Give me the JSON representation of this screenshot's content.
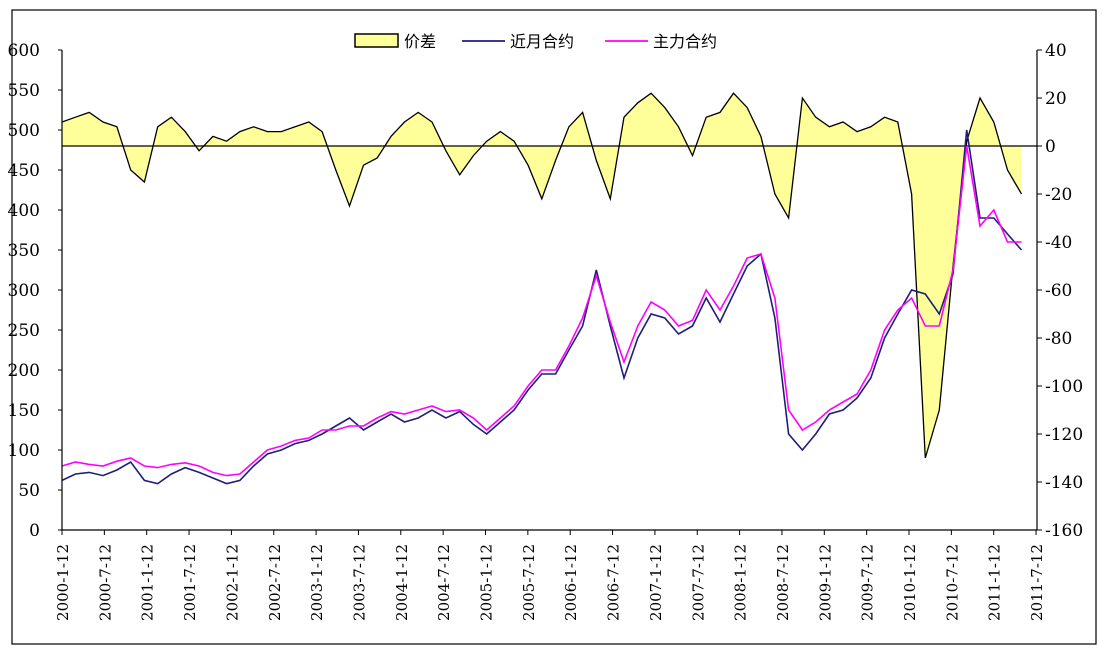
{
  "chart_data": {
    "type": "line",
    "title": "",
    "legend": {
      "placement": "top-center",
      "entries": [
        {
          "key": "spread",
          "label": "价差",
          "swatch": "area"
        },
        {
          "key": "near",
          "label": "近月合约",
          "swatch": "line"
        },
        {
          "key": "main",
          "label": "主力合约",
          "swatch": "line"
        }
      ]
    },
    "colors": {
      "spread_fill": "#ffff99",
      "spread_line": "#000000",
      "near": "#1f1f7a",
      "main": "#ff00ff",
      "axis": "#000000"
    },
    "left_axis": {
      "min": 0,
      "max": 600,
      "ticks": [
        "0",
        "50",
        "100",
        "150",
        "200",
        "250",
        "300",
        "350",
        "400",
        "450",
        "500",
        "550",
        "600"
      ]
    },
    "right_axis": {
      "min": -160,
      "max": 40,
      "ticks": [
        "40",
        "20",
        "0",
        "-20",
        "-40",
        "-60",
        "-80",
        "-100",
        "-120",
        "-140",
        "-160"
      ]
    },
    "x_axis": {
      "tick_labels": [
        "2000-1-12",
        "2000-7-12",
        "2001-1-12",
        "2001-7-12",
        "2002-1-12",
        "2002-7-12",
        "2003-1-12",
        "2003-7-12",
        "2004-1-12",
        "2004-7-12",
        "2005-1-12",
        "2005-7-12",
        "2006-1-12",
        "2006-7-12",
        "2007-1-12",
        "2007-7-12",
        "2008-1-12",
        "2008-7-12",
        "2009-1-12",
        "2009-7-12",
        "2010-1-12",
        "2010-7-12",
        "2011-1-12",
        "2011-7-12"
      ]
    },
    "grid": false,
    "series": [
      {
        "name": "价差",
        "axis": "right",
        "type": "area",
        "x": [
          "2000-01-12",
          "2000-03-12",
          "2000-05-12",
          "2000-07-12",
          "2000-09-12",
          "2000-11-12",
          "2001-01-12",
          "2001-03-12",
          "2001-05-12",
          "2001-07-12",
          "2001-09-12",
          "2001-11-12",
          "2002-01-12",
          "2002-03-12",
          "2002-05-12",
          "2002-07-12",
          "2002-09-12",
          "2002-11-12",
          "2003-01-12",
          "2003-03-12",
          "2003-05-12",
          "2003-07-12",
          "2003-09-12",
          "2003-11-12",
          "2004-01-12",
          "2004-03-12",
          "2004-05-12",
          "2004-07-12",
          "2004-09-12",
          "2004-11-12",
          "2005-01-12",
          "2005-03-12",
          "2005-05-12",
          "2005-07-12",
          "2005-09-12",
          "2005-11-12",
          "2006-01-12",
          "2006-03-12",
          "2006-05-12",
          "2006-07-12",
          "2006-09-12",
          "2006-11-12",
          "2007-01-12",
          "2007-03-12",
          "2007-05-12",
          "2007-07-12",
          "2007-09-12",
          "2007-11-12",
          "2008-01-12",
          "2008-03-12",
          "2008-05-12",
          "2008-07-12",
          "2008-09-12",
          "2008-11-12",
          "2009-01-12",
          "2009-03-12",
          "2009-05-12",
          "2009-07-12",
          "2009-09-12",
          "2009-11-12",
          "2010-01-12",
          "2010-03-12",
          "2010-05-12",
          "2010-07-12",
          "2010-09-12",
          "2010-11-12",
          "2011-01-12",
          "2011-03-12",
          "2011-05-12",
          "2011-07-12",
          "2011-09-12"
        ],
        "values": [
          10,
          12,
          14,
          10,
          8,
          -10,
          -15,
          8,
          12,
          6,
          -2,
          4,
          2,
          6,
          8,
          6,
          6,
          8,
          10,
          6,
          -10,
          -25,
          -8,
          -5,
          4,
          10,
          14,
          10,
          -2,
          -12,
          -4,
          2,
          6,
          2,
          -8,
          -22,
          -6,
          8,
          14,
          -6,
          -22,
          12,
          18,
          22,
          16,
          8,
          -4,
          12,
          14,
          22,
          16,
          4,
          -20,
          -30,
          20,
          12,
          8,
          10,
          6,
          8,
          12,
          10,
          -20,
          -130,
          -110,
          -50,
          2,
          20,
          10,
          -10,
          -20
        ]
      },
      {
        "name": "近月合约",
        "axis": "left",
        "type": "line",
        "x": [
          "2000-01-12",
          "2000-03-12",
          "2000-05-12",
          "2000-07-12",
          "2000-09-12",
          "2000-11-12",
          "2001-01-12",
          "2001-03-12",
          "2001-05-12",
          "2001-07-12",
          "2001-09-12",
          "2001-11-12",
          "2002-01-12",
          "2002-03-12",
          "2002-05-12",
          "2002-07-12",
          "2002-09-12",
          "2002-11-12",
          "2003-01-12",
          "2003-03-12",
          "2003-05-12",
          "2003-07-12",
          "2003-09-12",
          "2003-11-12",
          "2004-01-12",
          "2004-03-12",
          "2004-05-12",
          "2004-07-12",
          "2004-09-12",
          "2004-11-12",
          "2005-01-12",
          "2005-03-12",
          "2005-05-12",
          "2005-07-12",
          "2005-09-12",
          "2005-11-12",
          "2006-01-12",
          "2006-03-12",
          "2006-05-12",
          "2006-07-12",
          "2006-09-12",
          "2006-11-12",
          "2007-01-12",
          "2007-03-12",
          "2007-05-12",
          "2007-07-12",
          "2007-09-12",
          "2007-11-12",
          "2008-01-12",
          "2008-03-12",
          "2008-05-12",
          "2008-07-12",
          "2008-09-12",
          "2008-11-12",
          "2009-01-12",
          "2009-03-12",
          "2009-05-12",
          "2009-07-12",
          "2009-09-12",
          "2009-11-12",
          "2010-01-12",
          "2010-03-12",
          "2010-05-12",
          "2010-07-12",
          "2010-09-12",
          "2010-11-12",
          "2011-01-12",
          "2011-03-12",
          "2011-05-12",
          "2011-07-12",
          "2011-09-12"
        ],
        "values": [
          62,
          70,
          72,
          68,
          75,
          85,
          62,
          58,
          70,
          78,
          72,
          65,
          58,
          62,
          80,
          95,
          100,
          108,
          112,
          120,
          130,
          140,
          125,
          135,
          145,
          135,
          140,
          150,
          140,
          148,
          132,
          120,
          135,
          150,
          175,
          195,
          195,
          225,
          255,
          325,
          255,
          190,
          240,
          270,
          265,
          245,
          255,
          290,
          260,
          295,
          330,
          345,
          265,
          120,
          100,
          120,
          145,
          150,
          165,
          190,
          240,
          270,
          300,
          295,
          270,
          320,
          500,
          390,
          390,
          370,
          350
        ]
      },
      {
        "name": "主力合约",
        "axis": "left",
        "type": "line",
        "x": [
          "2000-01-12",
          "2000-03-12",
          "2000-05-12",
          "2000-07-12",
          "2000-09-12",
          "2000-11-12",
          "2001-01-12",
          "2001-03-12",
          "2001-05-12",
          "2001-07-12",
          "2001-09-12",
          "2001-11-12",
          "2002-01-12",
          "2002-03-12",
          "2002-05-12",
          "2002-07-12",
          "2002-09-12",
          "2002-11-12",
          "2003-01-12",
          "2003-03-12",
          "2003-05-12",
          "2003-07-12",
          "2003-09-12",
          "2003-11-12",
          "2004-01-12",
          "2004-03-12",
          "2004-05-12",
          "2004-07-12",
          "2004-09-12",
          "2004-11-12",
          "2005-01-12",
          "2005-03-12",
          "2005-05-12",
          "2005-07-12",
          "2005-09-12",
          "2005-11-12",
          "2006-01-12",
          "2006-03-12",
          "2006-05-12",
          "2006-07-12",
          "2006-09-12",
          "2006-11-12",
          "2007-01-12",
          "2007-03-12",
          "2007-05-12",
          "2007-07-12",
          "2007-09-12",
          "2007-11-12",
          "2008-01-12",
          "2008-03-12",
          "2008-05-12",
          "2008-07-12",
          "2008-09-12",
          "2008-11-12",
          "2009-01-12",
          "2009-03-12",
          "2009-05-12",
          "2009-07-12",
          "2009-09-12",
          "2009-11-12",
          "2010-01-12",
          "2010-03-12",
          "2010-05-12",
          "2010-07-12",
          "2010-09-12",
          "2010-11-12",
          "2011-01-12",
          "2011-03-12",
          "2011-05-12",
          "2011-07-12",
          "2011-09-12"
        ],
        "values": [
          80,
          85,
          82,
          80,
          86,
          90,
          80,
          78,
          82,
          84,
          80,
          72,
          68,
          70,
          85,
          100,
          105,
          112,
          115,
          125,
          125,
          130,
          130,
          140,
          148,
          145,
          150,
          155,
          148,
          150,
          140,
          125,
          140,
          155,
          180,
          200,
          200,
          230,
          265,
          318,
          260,
          210,
          255,
          285,
          275,
          255,
          262,
          300,
          275,
          305,
          340,
          345,
          290,
          150,
          125,
          135,
          150,
          160,
          170,
          200,
          250,
          275,
          290,
          255,
          255,
          325,
          480,
          380,
          400,
          360,
          360
        ]
      }
    ]
  }
}
